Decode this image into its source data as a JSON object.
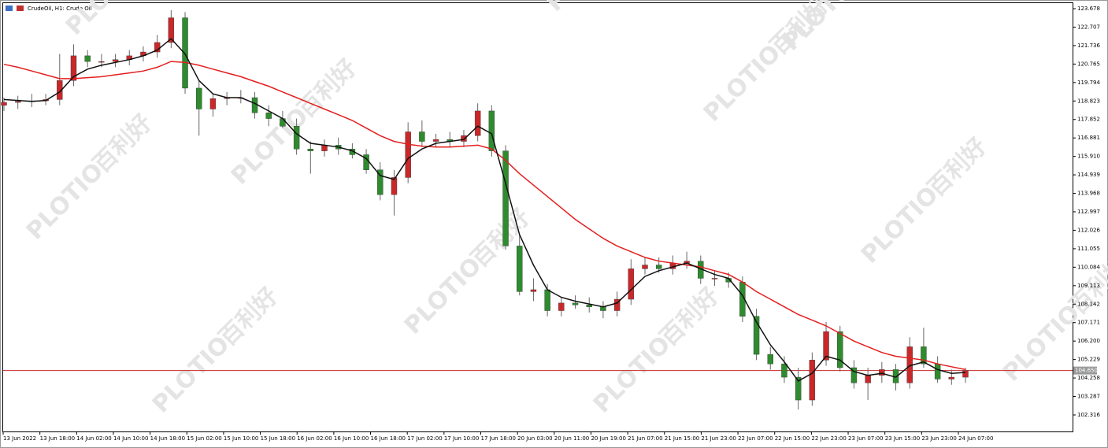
{
  "chart_data": {
    "type": "candlestick",
    "title": "CrudeOil, H1:  Crude Oil",
    "watermark": [
      "PLOTIO",
      "百利好"
    ],
    "up_color": "#c8282a",
    "down_color": "#2e8b2e",
    "open": [
      118.6,
      118.75,
      118.8,
      118.83,
      118.9,
      119.9,
      121.2,
      120.9,
      120.9,
      121.0,
      121.2,
      121.4,
      121.9,
      123.2,
      119.5,
      118.4,
      118.95,
      119.0,
      119.0,
      118.2,
      117.9,
      117.5,
      116.3,
      116.2,
      116.5,
      116.3,
      116.0,
      115.2,
      113.9,
      114.8,
      117.2,
      116.7,
      116.8,
      116.7,
      117.0,
      118.3,
      116.2,
      111.2,
      108.8,
      108.9,
      107.8,
      108.2,
      108.1,
      108.0,
      107.8,
      108.4,
      110.0,
      110.2,
      110.0,
      110.3,
      110.4,
      109.5,
      109.5,
      109.3,
      107.5,
      105.5,
      105.0,
      104.3,
      103.1,
      105.2,
      106.7,
      104.8,
      104.0,
      104.4,
      104.7,
      104.0,
      105.9,
      105.0,
      104.2,
      104.3
    ],
    "high": [
      119.0,
      119.1,
      119.2,
      119.2,
      121.3,
      121.8,
      121.5,
      121.3,
      121.3,
      121.5,
      121.7,
      122.3,
      123.6,
      123.5,
      119.9,
      119.2,
      119.3,
      119.4,
      119.3,
      118.6,
      118.3,
      117.9,
      116.7,
      116.8,
      116.9,
      116.6,
      116.3,
      115.6,
      115.2,
      117.7,
      117.8,
      117.1,
      117.2,
      117.3,
      118.7,
      118.6,
      116.5,
      111.8,
      109.5,
      109.2,
      108.5,
      108.6,
      108.5,
      108.3,
      108.8,
      110.5,
      110.6,
      110.6,
      110.7,
      110.9,
      110.7,
      109.9,
      109.8,
      109.6,
      107.9,
      105.9,
      105.4,
      104.8,
      105.6,
      107.2,
      107.0,
      105.2,
      104.8,
      105.1,
      105.0,
      106.4,
      106.9,
      105.4,
      104.7,
      104.8
    ],
    "low": [
      118.3,
      118.4,
      118.5,
      118.6,
      118.6,
      119.6,
      120.6,
      120.6,
      120.6,
      120.7,
      120.9,
      121.1,
      121.6,
      119.2,
      117.0,
      118.0,
      118.6,
      118.7,
      117.9,
      117.5,
      117.4,
      116.0,
      115.0,
      115.9,
      116.0,
      115.8,
      115.0,
      113.6,
      112.8,
      114.5,
      116.4,
      116.4,
      116.4,
      116.4,
      116.7,
      115.9,
      111.0,
      108.6,
      108.3,
      107.5,
      107.5,
      107.9,
      107.7,
      107.4,
      107.5,
      108.1,
      109.7,
      109.8,
      109.7,
      110.0,
      109.2,
      109.1,
      109.0,
      107.2,
      105.2,
      104.7,
      104.0,
      102.6,
      102.8,
      104.9,
      104.6,
      103.7,
      103.1,
      104.0,
      103.6,
      103.7,
      104.8,
      104.0,
      103.9,
      104.0
    ],
    "close": [
      118.75,
      118.8,
      118.83,
      118.9,
      119.9,
      121.2,
      120.9,
      120.9,
      121.0,
      121.2,
      121.4,
      121.9,
      123.2,
      119.5,
      118.4,
      118.95,
      119.0,
      119.0,
      118.2,
      117.9,
      117.5,
      116.3,
      116.2,
      116.5,
      116.3,
      116.0,
      115.2,
      113.9,
      114.8,
      117.2,
      116.7,
      116.8,
      116.7,
      117.0,
      118.3,
      116.2,
      111.2,
      108.8,
      108.9,
      107.8,
      108.2,
      108.1,
      108.0,
      107.8,
      108.4,
      110.0,
      110.2,
      110.0,
      110.3,
      110.4,
      109.5,
      109.5,
      109.3,
      107.5,
      105.5,
      105.0,
      104.3,
      103.1,
      105.2,
      106.7,
      104.8,
      104.0,
      104.4,
      104.7,
      104.0,
      105.9,
      105.0,
      104.2,
      104.3,
      104.65
    ],
    "lines": [
      {
        "color": "#e41e1e",
        "values": [
          120.75,
          120.6,
          120.4,
          120.2,
          120.0,
          120.0,
          120.05,
          120.1,
          120.2,
          120.3,
          120.4,
          120.6,
          120.9,
          120.85,
          120.7,
          120.5,
          120.3,
          120.1,
          119.85,
          119.6,
          119.3,
          119.0,
          118.7,
          118.4,
          118.1,
          117.8,
          117.4,
          117.0,
          116.7,
          116.55,
          116.45,
          116.4,
          116.4,
          116.45,
          116.5,
          116.3,
          115.7,
          115.0,
          114.4,
          113.8,
          113.2,
          112.6,
          112.1,
          111.6,
          111.2,
          110.9,
          110.6,
          110.4,
          110.3,
          110.2,
          110.1,
          109.9,
          109.7,
          109.3,
          108.8,
          108.4,
          108.0,
          107.6,
          107.3,
          107.0,
          106.6,
          106.2,
          105.9,
          105.6,
          105.4,
          105.3,
          105.2,
          105.0,
          104.85,
          104.7
        ]
      },
      {
        "color": "#111111",
        "values": [
          118.9,
          118.85,
          118.8,
          118.85,
          119.3,
          120.1,
          120.5,
          120.7,
          120.85,
          121.0,
          121.2,
          121.5,
          122.1,
          121.3,
          119.9,
          119.2,
          119.0,
          119.0,
          118.7,
          118.3,
          117.9,
          117.1,
          116.6,
          116.5,
          116.4,
          116.2,
          115.8,
          114.9,
          114.7,
          115.8,
          116.3,
          116.6,
          116.7,
          116.8,
          117.5,
          117.1,
          114.5,
          111.8,
          110.2,
          108.9,
          108.5,
          108.3,
          108.15,
          108.0,
          108.2,
          108.9,
          109.6,
          109.9,
          110.1,
          110.3,
          110.0,
          109.7,
          109.5,
          108.6,
          107.2,
          106.0,
          105.1,
          104.1,
          104.5,
          105.4,
          105.2,
          104.6,
          104.4,
          104.5,
          104.3,
          104.9,
          105.1,
          104.7,
          104.5,
          104.55
        ]
      }
    ],
    "time_labels": [
      "13 Jun 2022",
      "13 Jun 18:00",
      "14 Jun 02:00",
      "14 Jun 10:00",
      "14 Jun 18:00",
      "15 Jun 02:00",
      "15 Jun 10:00",
      "15 Jun 18:00",
      "16 Jun 02:00",
      "16 Jun 10:00",
      "16 Jun 18:00",
      "17 Jun 02:00",
      "17 Jun 10:00",
      "17 Jun 18:00",
      "20 Jun 03:00",
      "20 Jun 11:00",
      "20 Jun 19:00",
      "21 Jun 07:00",
      "21 Jun 15:00",
      "21 Jun 23:00",
      "22 Jun 07:00",
      "22 Jun 15:00",
      "22 Jun 23:00",
      "23 Jun 07:00",
      "23 Jun 15:00",
      "23 Jun 23:00",
      "24 Jun 07:00"
    ],
    "ylim": [
      101.446,
      124.01
    ],
    "yticks": [
      123.678,
      122.707,
      121.736,
      120.765,
      119.794,
      118.823,
      117.852,
      116.881,
      {
        "value": 115.91,
        "label": "115.910"
      },
      114.939,
      113.968,
      112.997,
      112.026,
      111.055,
      110.084,
      109.113,
      108.142,
      107.171,
      {
        "value": 106.2,
        "label": "106.200"
      },
      105.229,
      104.258,
      103.287,
      102.316
    ],
    "current_price": {
      "value": 104.65,
      "label": "104.650"
    },
    "current_price_color": "#c8282a"
  }
}
